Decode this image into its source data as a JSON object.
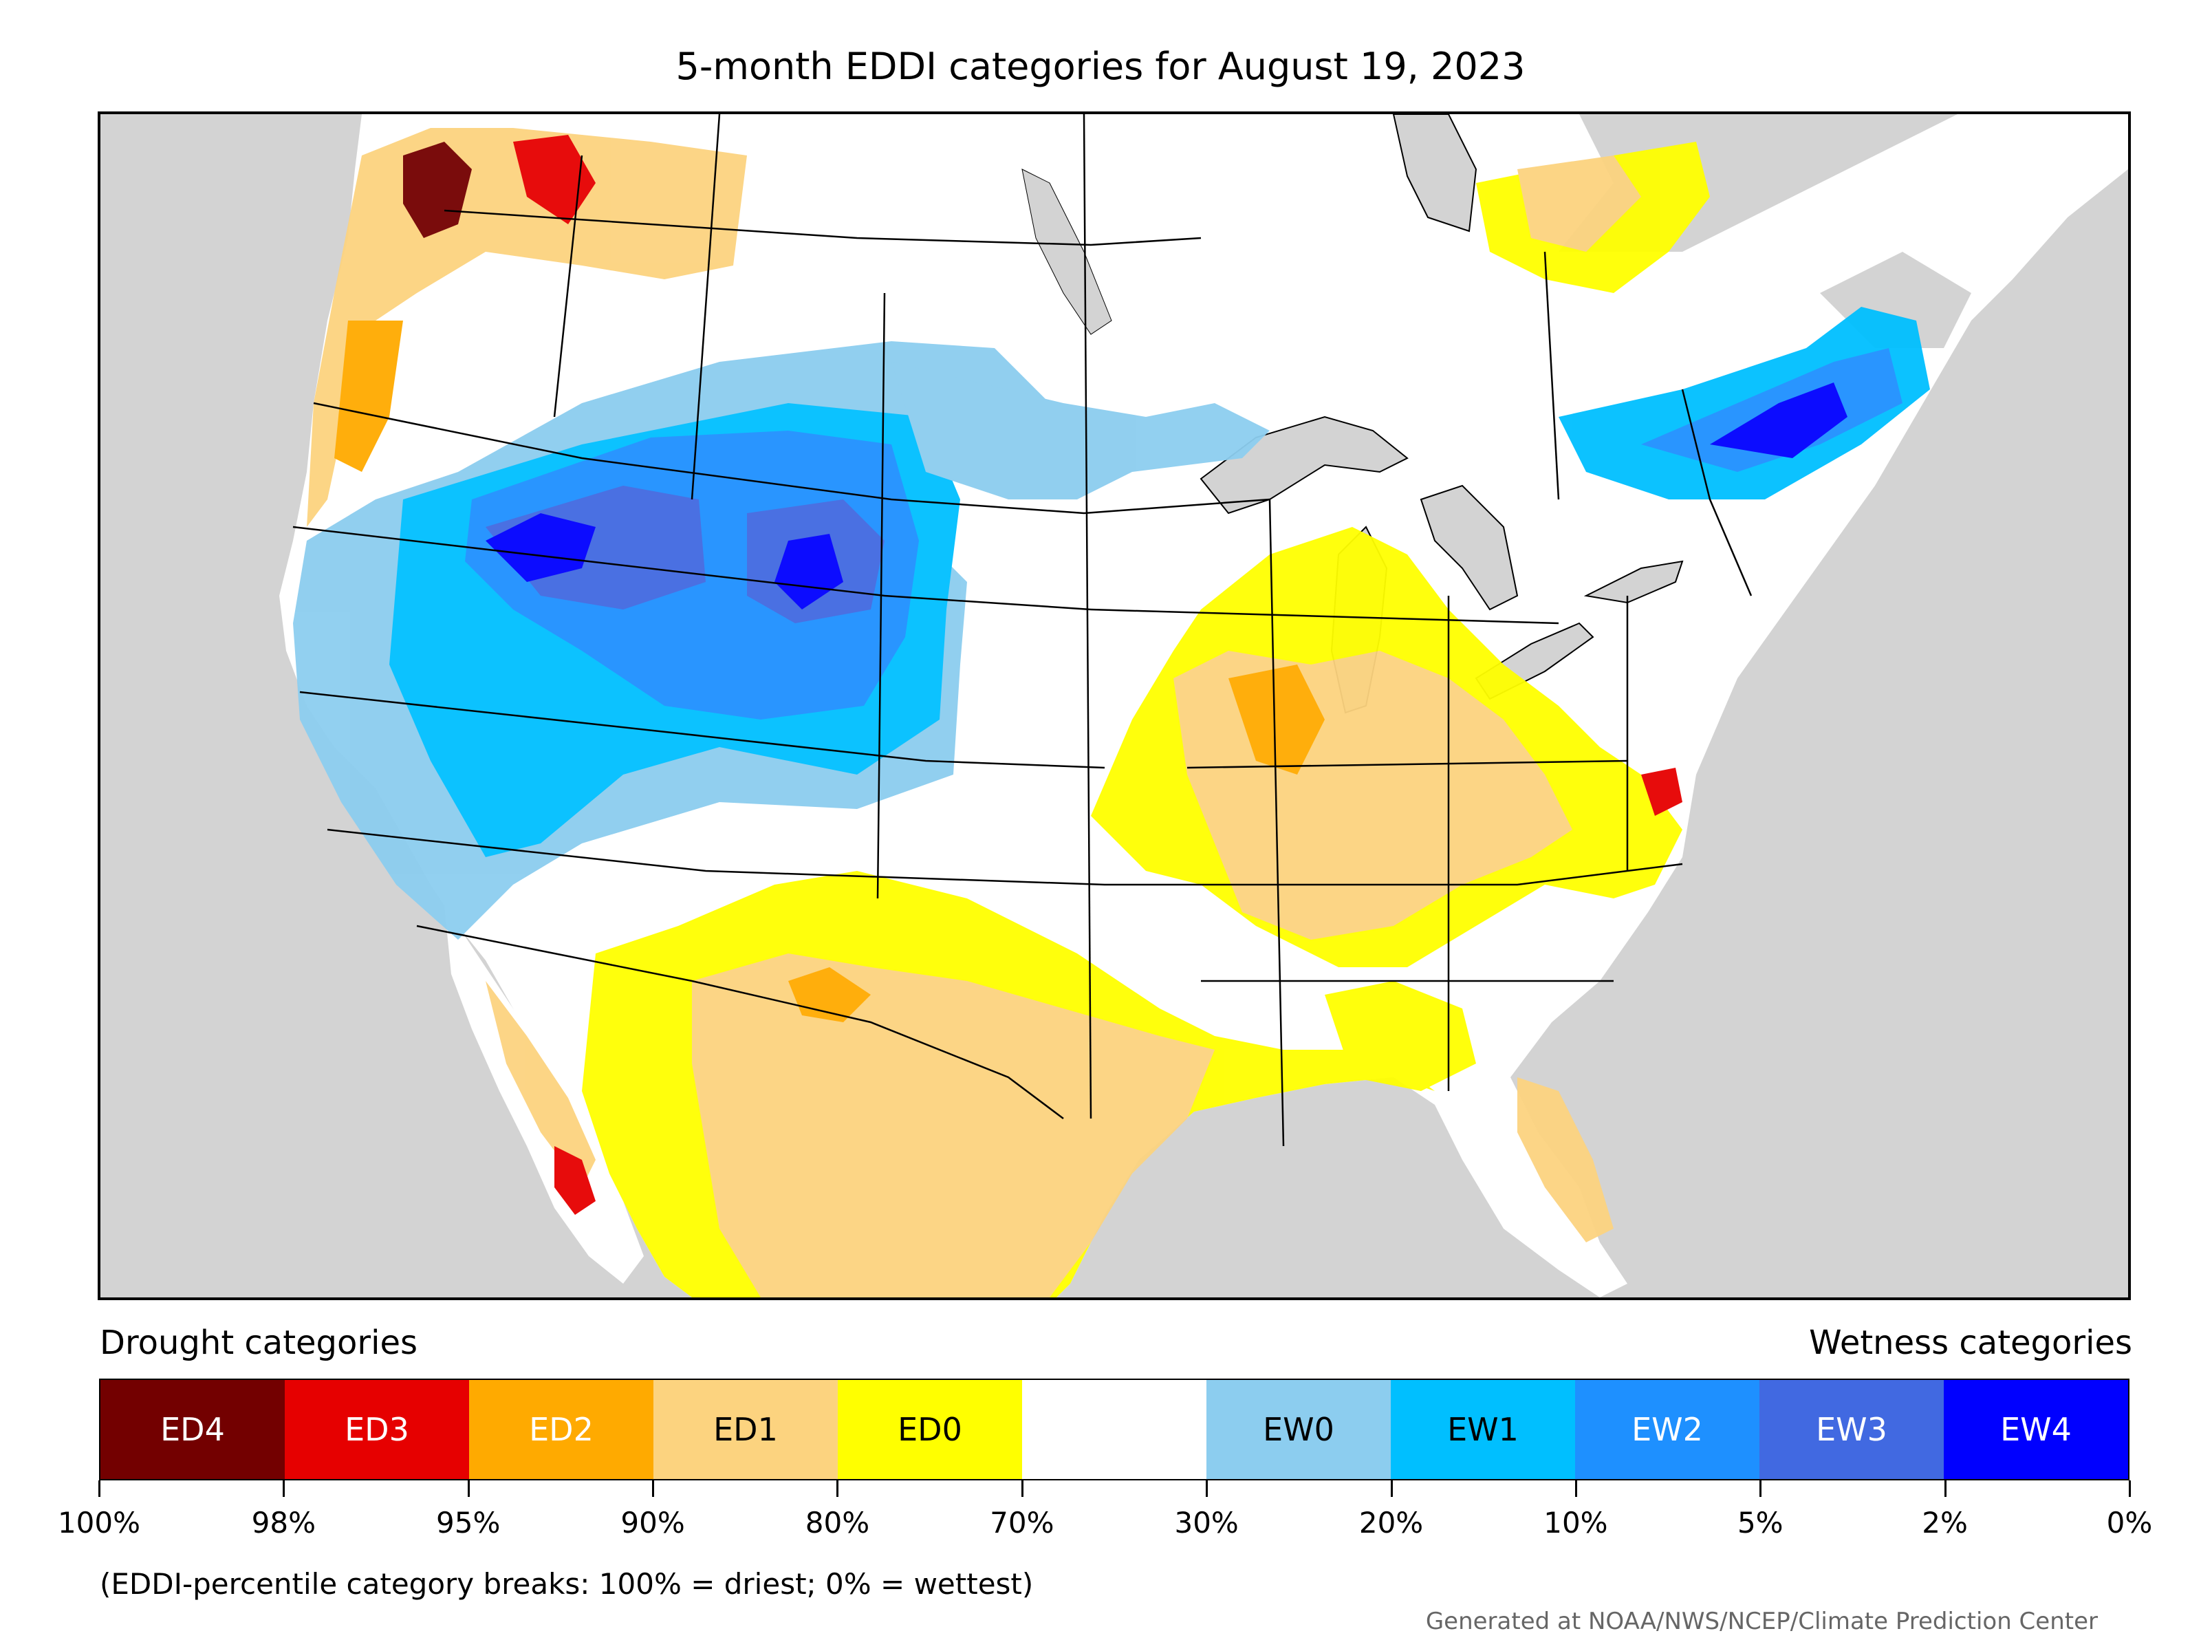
{
  "title": "5-month EDDI categories for August 19, 2023",
  "legend": {
    "drought_heading": "Drought categories",
    "wetness_heading": "Wetness categories",
    "categories": [
      {
        "label": "ED4",
        "color": "#730000",
        "text_color": "#ffffff"
      },
      {
        "label": "ED3",
        "color": "#e60000",
        "text_color": "#ffffff"
      },
      {
        "label": "ED2",
        "color": "#ffaa00",
        "text_color": "#ffffff"
      },
      {
        "label": "ED1",
        "color": "#fcd37f",
        "text_color": "#000000"
      },
      {
        "label": "ED0",
        "color": "#ffff00",
        "text_color": "#000000"
      },
      {
        "label": "",
        "color": "#ffffff",
        "text_color": "#000000"
      },
      {
        "label": "EW0",
        "color": "#8ccdef",
        "text_color": "#000000"
      },
      {
        "label": "EW1",
        "color": "#00bfff",
        "text_color": "#000000"
      },
      {
        "label": "EW2",
        "color": "#1e90ff",
        "text_color": "#ffffff"
      },
      {
        "label": "EW3",
        "color": "#4169e1",
        "text_color": "#ffffff"
      },
      {
        "label": "EW4",
        "color": "#0000ff",
        "text_color": "#ffffff"
      }
    ],
    "breaks": [
      "100%",
      "98%",
      "95%",
      "90%",
      "80%",
      "70%",
      "30%",
      "20%",
      "10%",
      "5%",
      "2%",
      "0%"
    ]
  },
  "note": "(EDDI-percentile category breaks: 100% = driest; 0% = wettest)",
  "credit": "Generated at NOAA/NWS/NCEP/Climate Prediction Center",
  "colors": {
    "ocean": "#d3d3d3",
    "land": "#ffffff",
    "border": "#000000"
  }
}
